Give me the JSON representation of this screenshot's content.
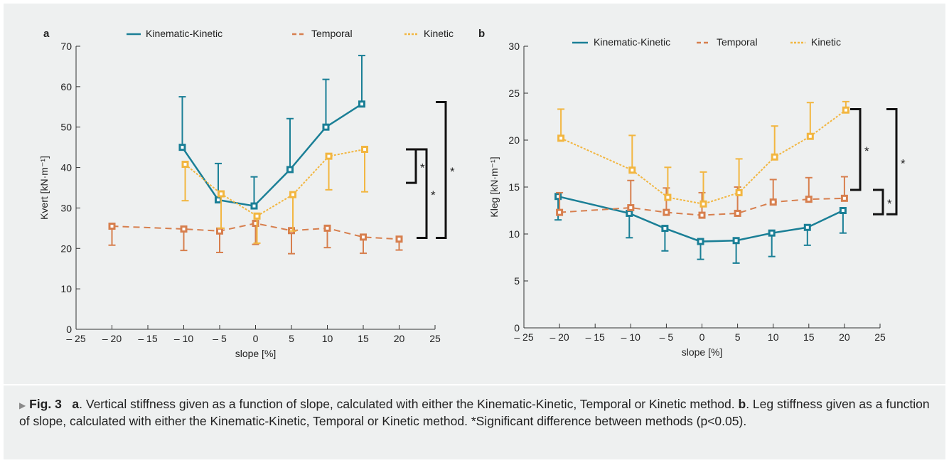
{
  "figure_caption": {
    "marker": "▶",
    "label": "Fig. 3",
    "text_a_letter": "a",
    "text_a": ". Vertical stiffness given as a function of slope, calculated with either the Kinematic-Kinetic, Temporal or Kinetic method. ",
    "text_b_letter": "b",
    "text_b": ". Leg stiffness given as a function of slope, calculated with either the Kinematic-Kinetic, Temporal or Kinetic method. ",
    "text_sig": "*Significant difference between methods (p<0.05)."
  },
  "chart_data": [
    {
      "panel": "a",
      "type": "line",
      "xlabel": "slope [%]",
      "ylabel": "Kvert [kN·m⁻¹]",
      "xlim": [
        -25,
        25
      ],
      "ylim": [
        0,
        70
      ],
      "xticks": [
        -25,
        -20,
        -15,
        -10,
        -5,
        0,
        5,
        10,
        15,
        20,
        25
      ],
      "xtick_labels": [
        "– 25",
        "– 20",
        "– 15",
        "– 10",
        "– 5",
        "0",
        "5",
        "10",
        "15",
        "20",
        "25"
      ],
      "yticks": [
        0,
        10,
        20,
        30,
        40,
        50,
        60,
        70
      ],
      "ytick_labels": [
        "0",
        "10",
        "20",
        "30",
        "40",
        "50",
        "60",
        "70"
      ],
      "legend_position": "top",
      "series": [
        {
          "name": "Kinematic-Kinetic",
          "color": "#1a7f96",
          "dash": "solid",
          "x": [
            -10.2,
            -5.2,
            -0.2,
            4.8,
            9.8,
            14.8
          ],
          "y": [
            45,
            32,
            30.5,
            39.5,
            50,
            55.7
          ],
          "err": [
            12.5,
            9,
            7.2,
            12.6,
            11.8,
            12
          ],
          "err_dir": "up"
        },
        {
          "name": "Temporal",
          "color": "#d77f4e",
          "dash": "dash",
          "x": [
            -20,
            -10,
            -5,
            0,
            5,
            10,
            15,
            20
          ],
          "y": [
            25.5,
            24.8,
            24.3,
            26.2,
            24.4,
            25,
            22.8,
            22.3
          ],
          "err": [
            4.7,
            5.3,
            5.3,
            5.2,
            5.7,
            4.8,
            4,
            2.7
          ],
          "err_dir": "down"
        },
        {
          "name": "Kinetic",
          "color": "#f2b640",
          "dash": "dot",
          "x": [
            -9.8,
            -4.8,
            0.2,
            5.2,
            10.2,
            15.2
          ],
          "y": [
            40.8,
            33.5,
            28,
            33.3,
            42.8,
            44.5
          ],
          "err": [
            9,
            8.5,
            6.7,
            9,
            8.3,
            10.5
          ],
          "err_dir": "down"
        }
      ],
      "significance": [
        {
          "label": "*",
          "from": 36.2,
          "to": 44.5,
          "offset": 0
        },
        {
          "label": "*",
          "from": 22.6,
          "to": 44.5,
          "offset": 1
        },
        {
          "label": "*",
          "from": 22.6,
          "to": 56.2,
          "offset": 2
        }
      ]
    },
    {
      "panel": "b",
      "type": "line",
      "xlabel": "slope [%]",
      "ylabel": "Kleg [kN·m⁻¹]",
      "xlim": [
        -25,
        25
      ],
      "ylim": [
        0,
        30
      ],
      "xticks": [
        -25,
        -20,
        -15,
        -10,
        -5,
        0,
        5,
        10,
        15,
        20,
        25
      ],
      "xtick_labels": [
        "– 25",
        "– 20",
        "– 15",
        "– 10",
        "– 5",
        "0",
        "5",
        "10",
        "15",
        "20",
        "25"
      ],
      "yticks": [
        0,
        5,
        10,
        15,
        20,
        25,
        30
      ],
      "ytick_labels": [
        "0",
        "5",
        "10",
        "15",
        "20",
        "25",
        "30"
      ],
      "legend_position": "top",
      "series": [
        {
          "name": "Kinematic-Kinetic",
          "color": "#1a7f96",
          "dash": "solid",
          "x": [
            -20.2,
            -10.2,
            -5.2,
            -0.2,
            4.8,
            9.8,
            14.8,
            19.8
          ],
          "y": [
            14,
            12.2,
            10.6,
            9.2,
            9.3,
            10.1,
            10.7,
            12.5
          ],
          "err": [
            2.5,
            2.6,
            2.4,
            1.9,
            2.4,
            2.5,
            1.9,
            2.4
          ],
          "err_dir": "down"
        },
        {
          "name": "Temporal",
          "color": "#d77f4e",
          "dash": "dash",
          "x": [
            -20,
            -10,
            -5,
            0,
            5,
            10,
            15,
            20
          ],
          "y": [
            12.3,
            12.8,
            12.3,
            12,
            12.2,
            13.4,
            13.7,
            13.8
          ],
          "err": [
            2.1,
            2.9,
            2.6,
            2.4,
            2.8,
            2.4,
            2.3,
            2.3
          ],
          "err_dir": "up"
        },
        {
          "name": "Kinetic",
          "color": "#f2b640",
          "dash": "dot",
          "x": [
            -19.8,
            -9.8,
            -4.8,
            0.2,
            5.2,
            10.2,
            15.2,
            20.2
          ],
          "y": [
            20.2,
            16.8,
            13.9,
            13.2,
            14.4,
            18.2,
            20.4,
            23.2
          ],
          "err": [
            3.1,
            3.7,
            3.2,
            3.4,
            3.6,
            3.3,
            3.6,
            0.9
          ],
          "err_dir": "up"
        }
      ],
      "significance": [
        {
          "label": "*",
          "from": 14.7,
          "to": 23.3,
          "offset": 1
        },
        {
          "label": "*",
          "from": 12.1,
          "to": 14.7,
          "offset": 0
        },
        {
          "label": "*",
          "from": 12.1,
          "to": 23.3,
          "offset": 2
        }
      ]
    }
  ]
}
